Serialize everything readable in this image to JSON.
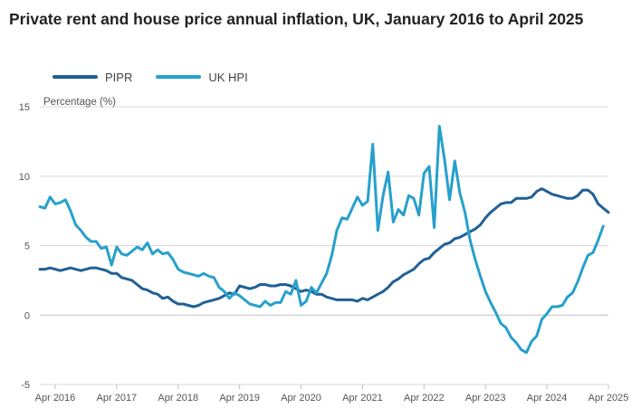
{
  "chart_data": {
    "type": "line",
    "title": "Private rent and house price annual inflation, UK, January 2016 to April 2025",
    "ylabel": "Percentage (%)",
    "xlabel": "",
    "ylim": [
      -5,
      15
    ],
    "yticks": [
      "15",
      "10",
      "5",
      "0",
      "-5"
    ],
    "xticks": [
      "Apr 2016",
      "Apr 2017",
      "Apr 2018",
      "Apr 2019",
      "Apr 2020",
      "Apr 2021",
      "Apr 2022",
      "Apr 2023",
      "Apr 2024",
      "Apr 2025"
    ],
    "grid": true,
    "legend_position": "top-left",
    "x_start": "2016-01",
    "x_end": "2025-04",
    "series": [
      {
        "name": "PIPR",
        "color": "#206095",
        "values": [
          3.3,
          3.3,
          3.4,
          3.3,
          3.2,
          3.3,
          3.4,
          3.3,
          3.2,
          3.3,
          3.4,
          3.4,
          3.3,
          3.2,
          3.0,
          3.0,
          2.7,
          2.6,
          2.5,
          2.2,
          1.9,
          1.8,
          1.6,
          1.5,
          1.2,
          1.3,
          1.0,
          0.8,
          0.8,
          0.7,
          0.6,
          0.7,
          0.9,
          1.0,
          1.1,
          1.2,
          1.4,
          1.6,
          1.5,
          2.1,
          2.0,
          1.9,
          2.0,
          2.2,
          2.2,
          2.1,
          2.1,
          2.2,
          2.2,
          2.1,
          1.9,
          1.7,
          1.8,
          1.7,
          1.5,
          1.5,
          1.3,
          1.2,
          1.1,
          1.1,
          1.1,
          1.1,
          1.0,
          1.2,
          1.1,
          1.3,
          1.5,
          1.7,
          2.0,
          2.4,
          2.6,
          2.9,
          3.1,
          3.3,
          3.7,
          4.0,
          4.1,
          4.5,
          4.8,
          5.1,
          5.2,
          5.5,
          5.6,
          5.8,
          6.0,
          6.2,
          6.5,
          7.0,
          7.4,
          7.7,
          8.0,
          8.1,
          8.1,
          8.4,
          8.4,
          8.4,
          8.5,
          8.9,
          9.1,
          8.9,
          8.7,
          8.6,
          8.5,
          8.4,
          8.4,
          8.6,
          9.0,
          9.0,
          8.7,
          8.0,
          7.7,
          7.4
        ]
      },
      {
        "name": "UK HPI",
        "color": "#27a0cc",
        "values": [
          7.8,
          7.7,
          8.5,
          8.0,
          8.1,
          8.3,
          7.5,
          6.5,
          6.1,
          5.6,
          5.3,
          5.3,
          4.8,
          4.9,
          3.6,
          4.9,
          4.4,
          4.3,
          4.6,
          4.9,
          4.7,
          5.2,
          4.4,
          4.7,
          4.4,
          4.5,
          4.0,
          3.3,
          3.1,
          3.0,
          2.9,
          2.8,
          3.0,
          2.8,
          2.7,
          2.0,
          1.7,
          1.2,
          1.6,
          1.4,
          1.1,
          0.8,
          0.7,
          0.6,
          1.0,
          0.7,
          0.9,
          0.9,
          1.7,
          1.5,
          2.5,
          0.7,
          1.0,
          2.0,
          1.6,
          2.3,
          3.0,
          4.3,
          6.1,
          7.0,
          6.9,
          7.7,
          8.5,
          7.9,
          8.2,
          12.3,
          6.1,
          8.6,
          10.3,
          6.7,
          7.6,
          7.2,
          8.6,
          8.4,
          7.2,
          10.2,
          10.7,
          6.3,
          13.6,
          11.2,
          8.3,
          11.1,
          8.8,
          7.4,
          5.4,
          4.0,
          2.8,
          1.7,
          0.9,
          0.2,
          -0.6,
          -0.9,
          -1.6,
          -2.0,
          -2.5,
          -2.7,
          -1.9,
          -1.5,
          -0.3,
          0.1,
          0.6,
          0.6,
          0.7,
          1.3,
          1.6,
          2.4,
          3.4,
          4.3,
          4.5,
          5.4,
          6.4
        ]
      }
    ]
  }
}
